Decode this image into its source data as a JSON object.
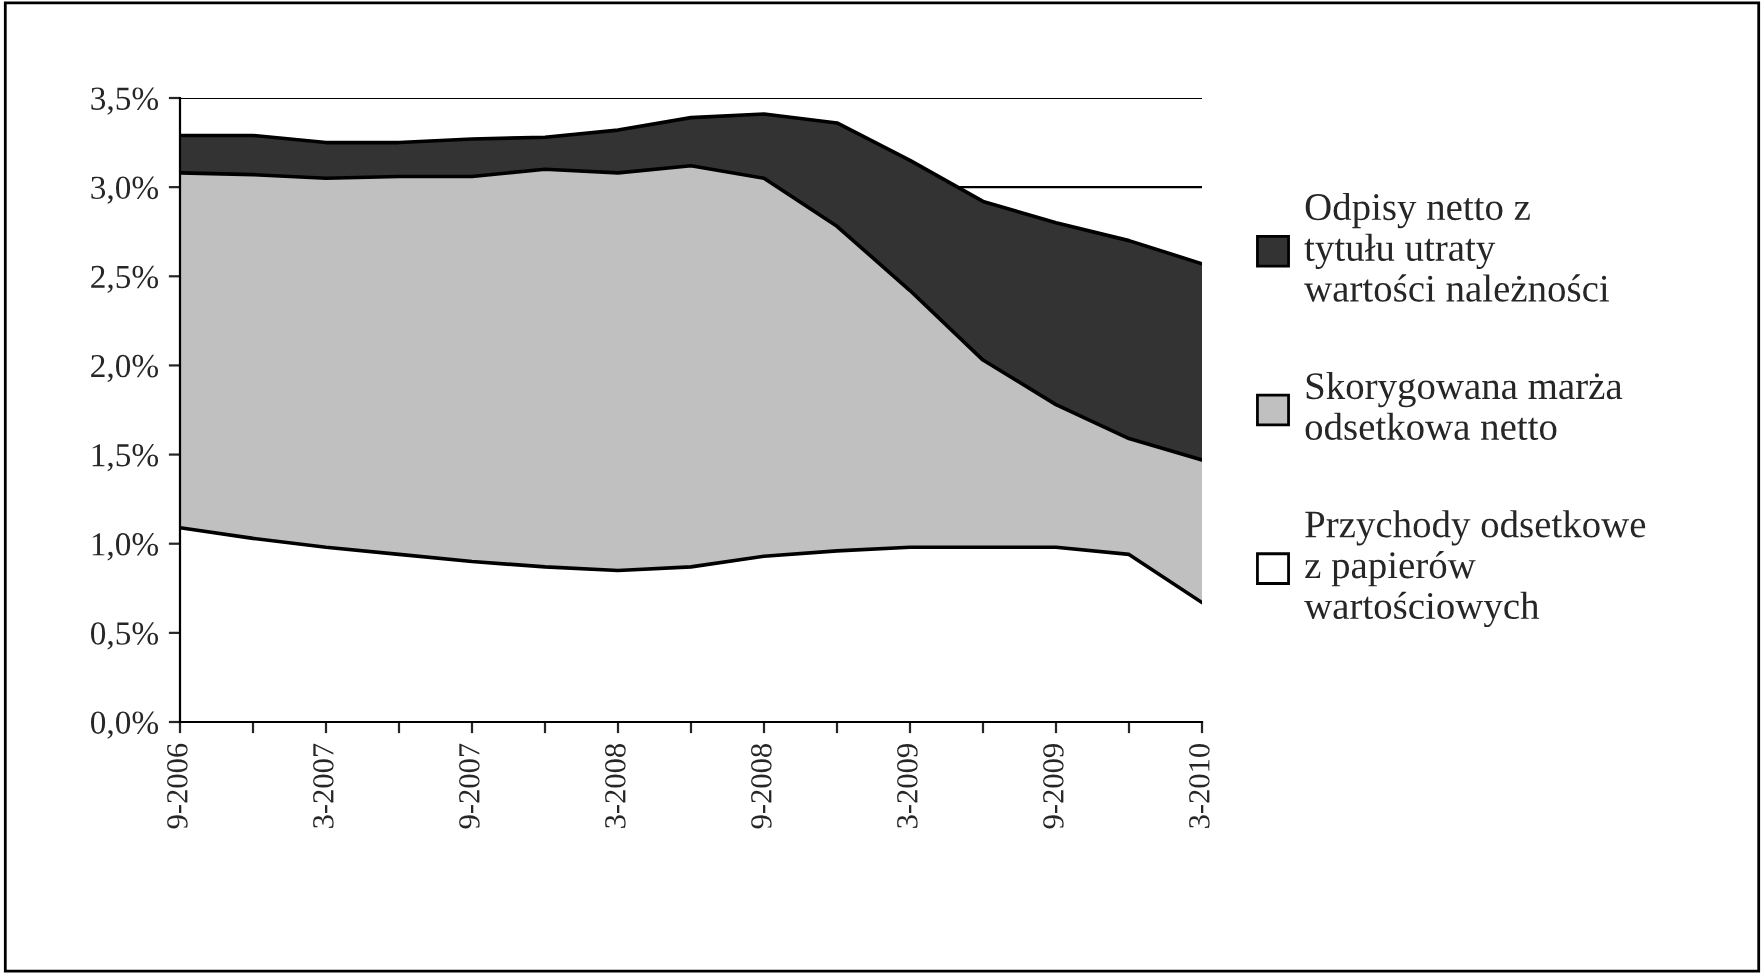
{
  "chart_data": {
    "type": "area",
    "stacked": true,
    "categories": [
      "9-2006",
      null,
      "3-2007",
      null,
      "9-2007",
      null,
      "3-2008",
      null,
      "9-2008",
      null,
      "3-2009",
      null,
      "9-2009",
      null,
      "3-2010"
    ],
    "series": [
      {
        "name": "Przychody odsetkowe z papierów wartościowych",
        "color": "#ffffff",
        "values": [
          1.09,
          1.03,
          0.98,
          0.94,
          0.9,
          0.87,
          0.85,
          0.87,
          0.93,
          0.96,
          0.98,
          0.98,
          0.98,
          0.94,
          0.67
        ]
      },
      {
        "name": "Skorygowana marża odsetkowa netto",
        "color": "#c0c0c0",
        "values": [
          1.99,
          2.04,
          2.07,
          2.12,
          2.16,
          2.23,
          2.23,
          2.25,
          2.12,
          1.82,
          1.44,
          1.05,
          0.8,
          0.65,
          0.8
        ]
      },
      {
        "name": "Odpisy netto z tytułu utraty wartości należności",
        "color": "#333333",
        "values": [
          0.21,
          0.22,
          0.2,
          0.19,
          0.21,
          0.18,
          0.24,
          0.27,
          0.36,
          0.58,
          0.73,
          0.89,
          1.02,
          1.11,
          1.1
        ]
      }
    ],
    "ylim": [
      0,
      3.5
    ],
    "yticks": [
      {
        "value": 0,
        "label": "0,0%"
      },
      {
        "value": 0.5,
        "label": "0,5%"
      },
      {
        "value": 1,
        "label": "1,0%"
      },
      {
        "value": 1.5,
        "label": "1,5%"
      },
      {
        "value": 2,
        "label": "2,0%"
      },
      {
        "value": 2.5,
        "label": "2,5%"
      },
      {
        "value": 3,
        "label": "3,0%"
      },
      {
        "value": 3.5,
        "label": "3,5%"
      }
    ],
    "grid": "y",
    "legend": "right"
  }
}
